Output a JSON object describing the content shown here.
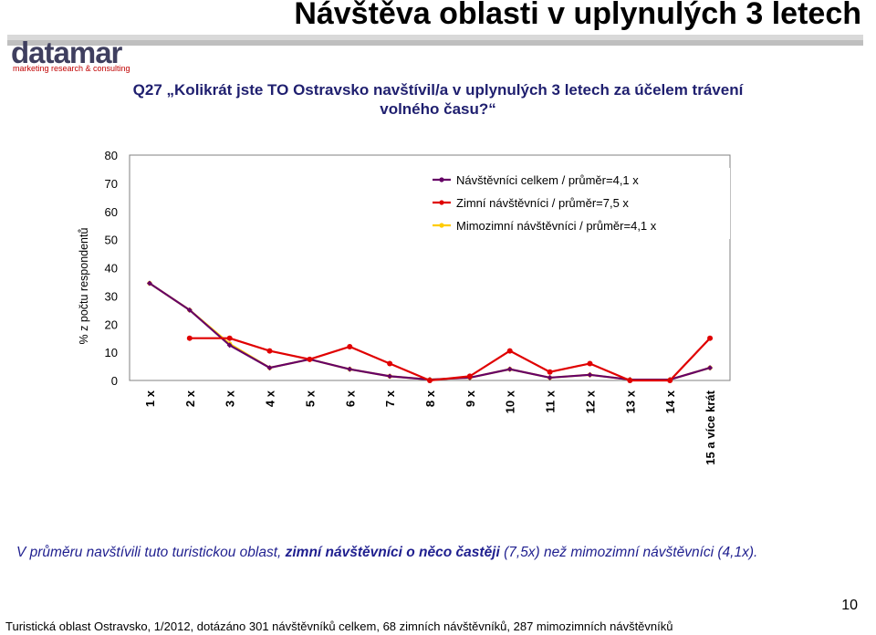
{
  "header": {
    "title": "Návštěva oblasti v uplynulých 3 letech",
    "logo_text": "datamar",
    "logo_tagline": "marketing research & consulting"
  },
  "question": {
    "line1": "Q27 „Kolikrát jste TO Ostravsko navštívil/a v uplynulých 3 letech za účelem trávení",
    "line2": "volného času?“"
  },
  "chart_data": {
    "type": "line",
    "title": "",
    "ylabel": "% z počtu respondentů",
    "xlabel": "",
    "ylim": [
      0,
      80
    ],
    "yticks": [
      0,
      10,
      20,
      30,
      40,
      50,
      60,
      70,
      80
    ],
    "grid": false,
    "legend_position": "top-right",
    "categories": [
      "1 x",
      "2 x",
      "3 x",
      "4 x",
      "5 x",
      "6 x",
      "7 x",
      "8 x",
      "9 x",
      "10 x",
      "11 x",
      "12 x",
      "13 x",
      "14 x",
      "15 a více krát"
    ],
    "series": [
      {
        "name": "Návštěvníci celkem / průměr=4,1 x",
        "color": "#660066",
        "values": [
          34.5,
          25,
          12.5,
          4.5,
          7.5,
          4,
          1.5,
          0.3,
          1,
          4,
          1,
          2,
          0.3,
          0.3,
          4.5
        ]
      },
      {
        "name": "Zimní návštěvníci / průměr=7,5 x",
        "color": "#e00000",
        "values": [
          null,
          15,
          15,
          10.5,
          7.5,
          12,
          6,
          0,
          1.5,
          10.5,
          3,
          6,
          0,
          0,
          15
        ]
      },
      {
        "name": "Mimozimní návštěvníci / průměr=4,1 x",
        "color": "#ffcc00",
        "values": [
          34.5,
          25,
          13,
          4.5,
          7.5,
          4,
          1.5,
          0.3,
          1,
          4,
          1,
          2,
          0.3,
          0.3,
          4.5
        ]
      }
    ]
  },
  "note": {
    "part1": "V průměru navštívili tuto turistickou oblast, ",
    "bold": "zimní návštěvníci o něco častěji",
    "part2": " (7,5x) než mimozimní návštěvníci (4,1x)."
  },
  "page_number": "10",
  "footer": "Turistická oblast Ostravsko, 1/2012, dotázáno 301 návštěvníků celkem, 68 zimních návštěvníků, 287 mimozimních návštěvníků"
}
